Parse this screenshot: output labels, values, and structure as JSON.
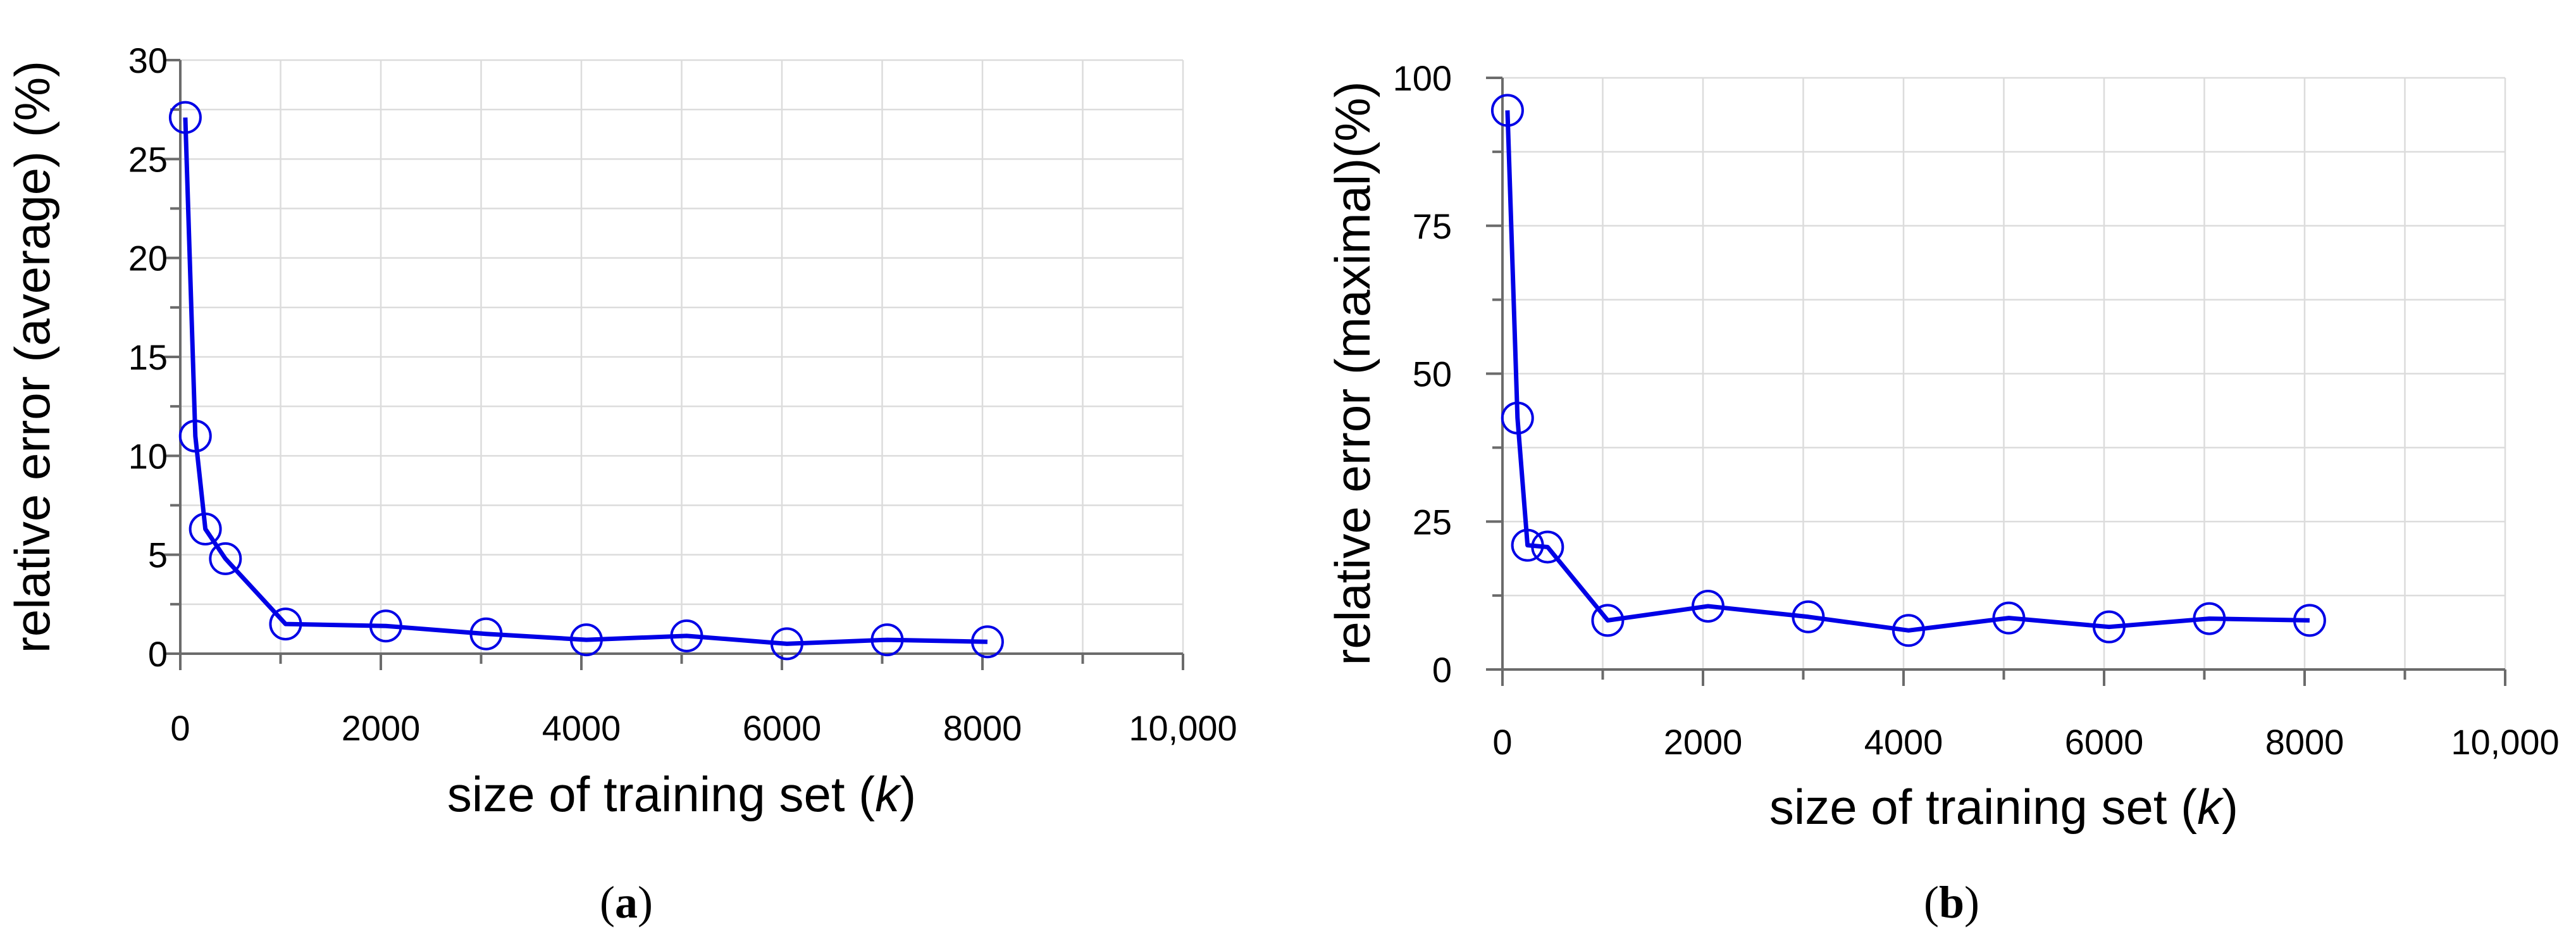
{
  "chart_data": [
    {
      "type": "line",
      "panel_label": "a",
      "xlabel": {
        "text": "size of training set (",
        "italic": "k",
        "tail": ")"
      },
      "ylabel": "relative error (average) (%)",
      "xlim": [
        0,
        10000
      ],
      "ylim": [
        0,
        30
      ],
      "xticks": [
        0,
        2000,
        4000,
        6000,
        8000,
        10000
      ],
      "xtick_labels": [
        "0",
        "2000",
        "4000",
        "6000",
        "8000",
        "10,000"
      ],
      "yticks": [
        0,
        5,
        10,
        15,
        20,
        25,
        30
      ],
      "ytick_labels": [
        "0",
        "5",
        "10",
        "15",
        "20",
        "25",
        "30"
      ],
      "grid": true,
      "series": [
        {
          "x": [
            50,
            150,
            250,
            450,
            1050,
            2050,
            3050,
            4050,
            5050,
            6050,
            7050,
            8050
          ],
          "y": [
            27.1,
            11.0,
            6.3,
            4.8,
            1.5,
            1.4,
            1.0,
            0.7,
            0.9,
            0.5,
            0.7,
            0.6
          ],
          "color": "#0000e6",
          "marker": "open-circle"
        }
      ]
    },
    {
      "type": "line",
      "panel_label": "b",
      "xlabel": {
        "text": "size of training set (",
        "italic": "k",
        "tail": ")"
      },
      "ylabel": "relative error (maximal)(%)",
      "xlim": [
        0,
        10000
      ],
      "ylim": [
        0,
        100
      ],
      "xticks": [
        0,
        2000,
        4000,
        6000,
        8000,
        10000
      ],
      "xtick_labels": [
        "0",
        "2000",
        "4000",
        "6000",
        "8000",
        "10,000"
      ],
      "yticks": [
        0,
        25,
        50,
        75,
        100
      ],
      "ytick_labels": [
        "0",
        "25",
        "50",
        "75",
        "100"
      ],
      "grid": true,
      "series": [
        {
          "x": [
            50,
            150,
            250,
            450,
            1050,
            2050,
            3050,
            4050,
            5050,
            6050,
            7050,
            8050
          ],
          "y": [
            94.5,
            42.5,
            21.0,
            20.7,
            8.3,
            10.7,
            8.9,
            6.6,
            8.7,
            7.2,
            8.6,
            8.3
          ],
          "color": "#0000e6",
          "marker": "open-circle"
        }
      ]
    }
  ]
}
